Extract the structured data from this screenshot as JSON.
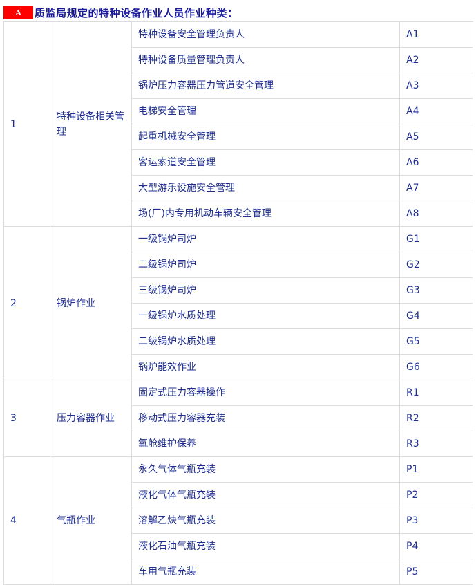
{
  "heading": {
    "badge": "A",
    "title": "质监局规定的特种设备作业人员作业种类："
  },
  "colors": {
    "badge": "#ff0000",
    "title": "#1a1a9c",
    "text": "#1f2f8f",
    "border": "#dcdcdc"
  },
  "groups": [
    {
      "no": "1",
      "category": "特种设备相关管理",
      "items": [
        {
          "name": "特种设备安全管理负责人",
          "code": "A1"
        },
        {
          "name": "特种设备质量管理负责人",
          "code": "A2"
        },
        {
          "name": "锅炉压力容器压力管道安全管理",
          "code": "A3"
        },
        {
          "name": "电梯安全管理",
          "code": "A4"
        },
        {
          "name": "起重机械安全管理",
          "code": "A5"
        },
        {
          "name": "客运索道安全管理",
          "code": "A6"
        },
        {
          "name": "大型游乐设施安全管理",
          "code": "A7"
        },
        {
          "name": "场(厂)内专用机动车辆安全管理",
          "code": "A8"
        }
      ]
    },
    {
      "no": "2",
      "category": "锅炉作业",
      "items": [
        {
          "name": "一级锅炉司炉",
          "code": "G1"
        },
        {
          "name": "二级锅炉司炉",
          "code": "G2"
        },
        {
          "name": "三级锅炉司炉",
          "code": "G3"
        },
        {
          "name": "一级锅炉水质处理",
          "code": "G4"
        },
        {
          "name": "二级锅炉水质处理",
          "code": "G5"
        },
        {
          "name": "锅炉能效作业",
          "code": "G6"
        }
      ]
    },
    {
      "no": "3",
      "category": "压力容器作业",
      "items": [
        {
          "name": "固定式压力容器操作",
          "code": "R1"
        },
        {
          "name": "移动式压力容器充装",
          "code": "R2"
        },
        {
          "name": "氧舱维护保养",
          "code": "R3"
        }
      ]
    },
    {
      "no": "4",
      "category": "气瓶作业",
      "items": [
        {
          "name": "永久气体气瓶充装",
          "code": "P1"
        },
        {
          "name": "液化气体气瓶充装",
          "code": "P2"
        },
        {
          "name": "溶解乙炔气瓶充装",
          "code": "P3"
        },
        {
          "name": "液化石油气瓶充装",
          "code": "P4"
        },
        {
          "name": "车用气瓶充装",
          "code": "P5"
        }
      ]
    }
  ]
}
